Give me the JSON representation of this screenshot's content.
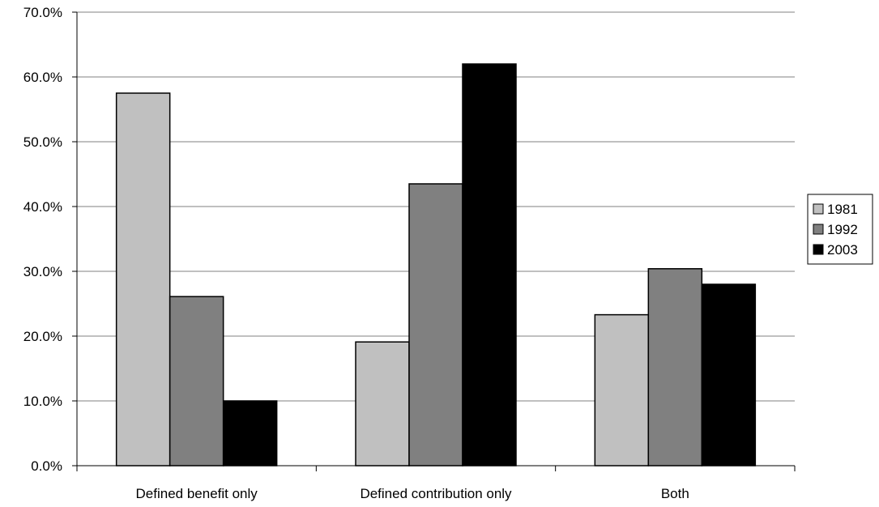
{
  "chart_data": {
    "type": "bar",
    "title": "",
    "xlabel": "",
    "ylabel": "",
    "categories": [
      "Defined benefit only",
      "Defined contribution only",
      "Both"
    ],
    "series": [
      {
        "name": "1981",
        "color": "#c0c0c0",
        "values": [
          57.5,
          19.1,
          23.3
        ]
      },
      {
        "name": "1992",
        "color": "#808080",
        "values": [
          26.1,
          43.5,
          30.4
        ]
      },
      {
        "name": "2003",
        "color": "#000000",
        "values": [
          10.0,
          62.0,
          28.0
        ]
      }
    ],
    "ylim": [
      0,
      70
    ],
    "yticks": [
      "0.0%",
      "10.0%",
      "20.0%",
      "30.0%",
      "40.0%",
      "50.0%",
      "60.0%",
      "70.0%"
    ],
    "grid": true,
    "legend_position": "right"
  }
}
